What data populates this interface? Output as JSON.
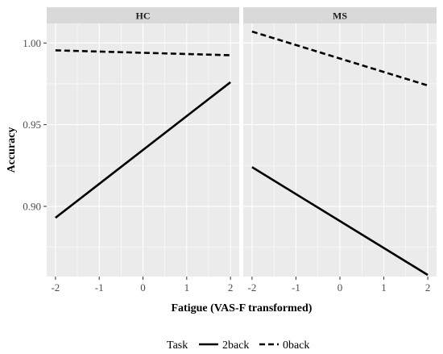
{
  "chart_data": {
    "type": "line",
    "xlabel": "Fatigue (VAS-F transformed)",
    "ylabel": "Accuracy",
    "xlim": [
      -2.2,
      2.2
    ],
    "ylim": [
      0.857,
      1.012
    ],
    "x_ticks": [
      -2,
      -1,
      0,
      1,
      2
    ],
    "x_tick_labels": [
      "-2",
      "-1",
      "0",
      "1",
      "2"
    ],
    "y_ticks": [
      0.9,
      0.95,
      1.0
    ],
    "y_tick_labels": [
      "0.90",
      "0.95",
      "1.00"
    ],
    "grid": true,
    "legend": {
      "title": "Task",
      "placement": "bottom",
      "entries": [
        {
          "label": "2back",
          "linetype": "solid"
        },
        {
          "label": "0back",
          "linetype": "dashed"
        }
      ]
    },
    "panels": [
      {
        "label": "HC",
        "series": [
          {
            "name": "2back",
            "linetype": "solid",
            "x": [
              -2,
              2
            ],
            "y": [
              0.893,
              0.976
            ]
          },
          {
            "name": "0back",
            "linetype": "dashed",
            "x": [
              -2,
              2
            ],
            "y": [
              0.9955,
              0.9925
            ]
          }
        ]
      },
      {
        "label": "MS",
        "series": [
          {
            "name": "2back",
            "linetype": "solid",
            "x": [
              -2,
              2
            ],
            "y": [
              0.924,
              0.858
            ]
          },
          {
            "name": "0back",
            "linetype": "dashed",
            "x": [
              -2,
              2
            ],
            "y": [
              1.007,
              0.974
            ]
          }
        ]
      }
    ],
    "colors": {
      "line": "#000000",
      "panel": "#ebebeb",
      "strip": "#d9d9d9",
      "grid": "#ffffff"
    }
  }
}
